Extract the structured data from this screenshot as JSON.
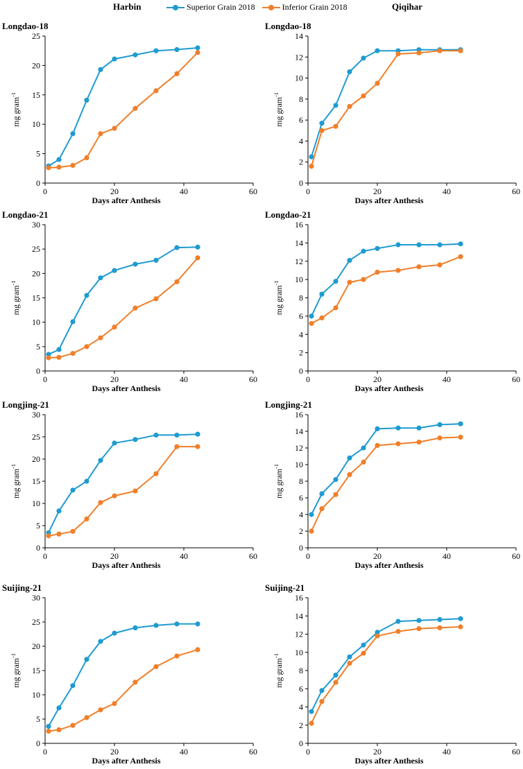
{
  "header": {
    "left_title": "Harbin",
    "right_title": "Qiqihar",
    "legend": [
      {
        "label": "Superior Grain 2018",
        "color": "#1f9bd1"
      },
      {
        "label": "Inferior Grain 2018",
        "color": "#f07f2a"
      }
    ]
  },
  "chart_data": [
    {
      "type": "line",
      "title": "Longdao-18",
      "location": "Harbin",
      "xlabel": "Days after Anthesis",
      "ylabel": "mg gram-1",
      "xlim": [
        0,
        60
      ],
      "xticks": [
        0,
        20,
        40,
        60
      ],
      "ylim": [
        0,
        25
      ],
      "yticks": [
        0,
        5,
        10,
        15,
        20,
        25
      ],
      "x": [
        1,
        4,
        8,
        12,
        16,
        20,
        26,
        32,
        38,
        44
      ],
      "series": [
        {
          "name": "Superior Grain 2018",
          "values": [
            2.9,
            4.0,
            8.4,
            14.1,
            19.3,
            21.1,
            21.8,
            22.5,
            22.7,
            23.0
          ]
        },
        {
          "name": "Inferior Grain 2018",
          "values": [
            2.6,
            2.7,
            3.0,
            4.3,
            8.4,
            9.3,
            12.7,
            15.7,
            18.6,
            22.2
          ]
        }
      ]
    },
    {
      "type": "line",
      "title": "Longdao-18",
      "location": "Qiqihar",
      "xlabel": "Days after Anthesis",
      "ylabel": "mg gram-1",
      "xlim": [
        0,
        60
      ],
      "xticks": [
        0,
        20,
        40,
        60
      ],
      "ylim": [
        0,
        14
      ],
      "yticks": [
        0,
        2,
        4,
        6,
        8,
        10,
        12,
        14
      ],
      "x": [
        1,
        4,
        8,
        12,
        16,
        20,
        26,
        32,
        38,
        44
      ],
      "series": [
        {
          "name": "Superior Grain 2018",
          "values": [
            2.5,
            5.7,
            7.4,
            10.6,
            11.9,
            12.6,
            12.6,
            12.7,
            12.7,
            12.7
          ]
        },
        {
          "name": "Inferior Grain 2018",
          "values": [
            1.6,
            5.0,
            5.4,
            7.3,
            8.3,
            9.5,
            12.3,
            12.4,
            12.6,
            12.6
          ]
        }
      ]
    },
    {
      "type": "line",
      "title": "Longdao-21",
      "location": "Harbin",
      "xlabel": "Days after Anthesis",
      "ylabel": "mg gram-1",
      "xlim": [
        0,
        60
      ],
      "xticks": [
        0,
        20,
        40,
        60
      ],
      "ylim": [
        0,
        30
      ],
      "yticks": [
        0,
        5,
        10,
        15,
        20,
        25,
        30
      ],
      "x": [
        1,
        4,
        8,
        12,
        16,
        20,
        26,
        32,
        38,
        44
      ],
      "series": [
        {
          "name": "Superior Grain 2018",
          "values": [
            3.4,
            4.4,
            10.1,
            15.5,
            19.1,
            20.6,
            21.9,
            22.7,
            25.3,
            25.4
          ]
        },
        {
          "name": "Inferior Grain 2018",
          "values": [
            2.7,
            2.8,
            3.6,
            5.0,
            6.8,
            9.0,
            12.9,
            14.8,
            18.3,
            23.2
          ]
        }
      ]
    },
    {
      "type": "line",
      "title": "Longdao-21",
      "location": "Qiqihar",
      "xlabel": "Days after Anthesis",
      "ylabel": "mg gram-1",
      "xlim": [
        0,
        60
      ],
      "xticks": [
        0,
        20,
        40,
        60
      ],
      "ylim": [
        0,
        16
      ],
      "yticks": [
        0,
        2,
        4,
        6,
        8,
        10,
        12,
        14,
        16
      ],
      "x": [
        1,
        4,
        8,
        12,
        16,
        20,
        26,
        32,
        38,
        44
      ],
      "series": [
        {
          "name": "Superior Grain 2018",
          "values": [
            6.0,
            8.4,
            9.8,
            12.1,
            13.1,
            13.4,
            13.8,
            13.8,
            13.8,
            13.9
          ]
        },
        {
          "name": "Inferior Grain 2018",
          "values": [
            5.2,
            5.8,
            6.9,
            9.7,
            10.0,
            10.8,
            11.0,
            11.4,
            11.6,
            12.5
          ]
        }
      ]
    },
    {
      "type": "line",
      "title": "Longjing-21",
      "location": "Harbin",
      "xlabel": "Days after Anthesis",
      "ylabel": "mg gram-1",
      "xlim": [
        0,
        60
      ],
      "xticks": [
        0,
        20,
        40,
        60
      ],
      "ylim": [
        0,
        30
      ],
      "yticks": [
        0,
        5,
        10,
        15,
        20,
        25,
        30
      ],
      "x": [
        1,
        4,
        8,
        12,
        16,
        20,
        26,
        32,
        38,
        44
      ],
      "series": [
        {
          "name": "Superior Grain 2018",
          "values": [
            3.4,
            8.3,
            13.0,
            15.0,
            19.7,
            23.6,
            24.4,
            25.4,
            25.4,
            25.6
          ]
        },
        {
          "name": "Inferior Grain 2018",
          "values": [
            2.7,
            3.1,
            3.7,
            6.5,
            10.2,
            11.7,
            12.8,
            16.7,
            22.8,
            22.8
          ]
        }
      ]
    },
    {
      "type": "line",
      "title": "Longjing-21",
      "location": "Qiqihar",
      "xlabel": "Days after Anthesis",
      "ylabel": "mg gram-1",
      "xlim": [
        0,
        60
      ],
      "xticks": [
        0,
        20,
        40,
        60
      ],
      "ylim": [
        0,
        16
      ],
      "yticks": [
        0,
        2,
        4,
        6,
        8,
        10,
        12,
        14,
        16
      ],
      "x": [
        1,
        4,
        8,
        12,
        16,
        20,
        26,
        32,
        38,
        44
      ],
      "series": [
        {
          "name": "Superior Grain 2018",
          "values": [
            4.0,
            6.5,
            8.2,
            10.8,
            12.0,
            14.3,
            14.4,
            14.4,
            14.8,
            14.9
          ]
        },
        {
          "name": "Inferior Grain 2018",
          "values": [
            2.0,
            4.7,
            6.4,
            8.8,
            10.3,
            12.3,
            12.5,
            12.7,
            13.2,
            13.3
          ]
        }
      ]
    },
    {
      "type": "line",
      "title": "Suijing-21",
      "location": "Harbin",
      "xlabel": "Days after Anthesis",
      "ylabel": "mg gram-1",
      "xlim": [
        0,
        60
      ],
      "xticks": [
        0,
        20,
        40,
        60
      ],
      "ylim": [
        0,
        30
      ],
      "yticks": [
        0,
        5,
        10,
        15,
        20,
        25,
        30
      ],
      "x": [
        1,
        4,
        8,
        12,
        16,
        20,
        26,
        32,
        38,
        44
      ],
      "series": [
        {
          "name": "Superior Grain 2018",
          "values": [
            3.5,
            7.3,
            11.9,
            17.3,
            21.0,
            22.7,
            23.8,
            24.3,
            24.6,
            24.6
          ]
        },
        {
          "name": "Inferior Grain 2018",
          "values": [
            2.5,
            2.8,
            3.7,
            5.3,
            6.9,
            8.2,
            12.6,
            15.8,
            18.0,
            19.3
          ]
        }
      ]
    },
    {
      "type": "line",
      "title": "Suijing-21",
      "location": "Qiqihar",
      "xlabel": "Days after Anthesis",
      "ylabel": "mg gram-1",
      "xlim": [
        0,
        60
      ],
      "xticks": [
        0,
        20,
        40,
        60
      ],
      "ylim": [
        0,
        16
      ],
      "yticks": [
        0,
        2,
        4,
        6,
        8,
        10,
        12,
        14,
        16
      ],
      "x": [
        1,
        4,
        8,
        12,
        16,
        20,
        26,
        32,
        38,
        44
      ],
      "series": [
        {
          "name": "Superior Grain 2018",
          "values": [
            3.5,
            5.8,
            7.5,
            9.5,
            10.8,
            12.2,
            13.4,
            13.5,
            13.6,
            13.7
          ]
        },
        {
          "name": "Inferior Grain 2018",
          "values": [
            2.2,
            4.6,
            6.7,
            8.8,
            9.9,
            11.8,
            12.3,
            12.6,
            12.7,
            12.8
          ]
        }
      ]
    }
  ]
}
